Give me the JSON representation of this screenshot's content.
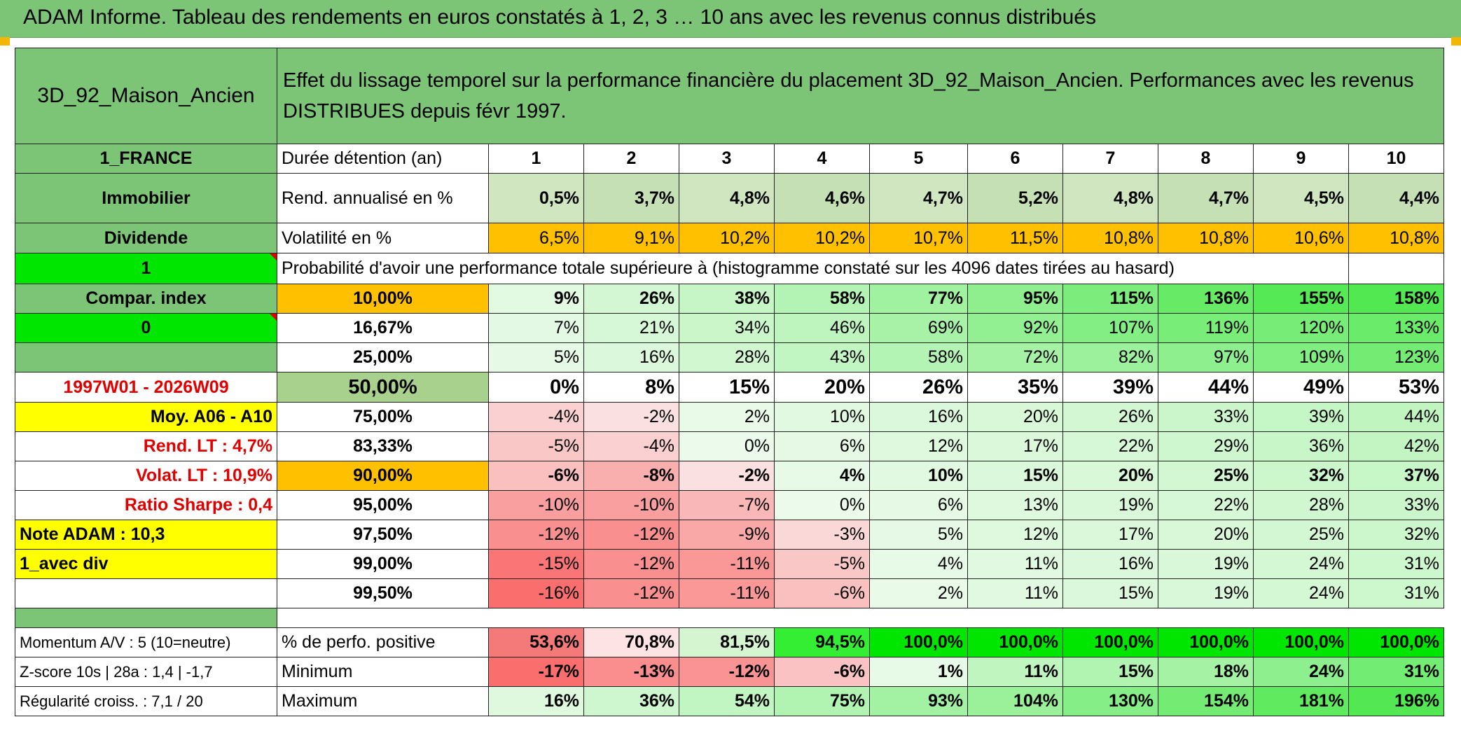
{
  "title": "ADAM Informe. Tableau des rendements en euros constatés à 1, 2, 3 … 10 ans avec les revenus connus distribués",
  "colors": {
    "green_header": "#7cc576",
    "bright_green": "#00e600",
    "orange": "#ffc000",
    "yellow": "#ffff00",
    "red_text": "#e00000"
  },
  "left": {
    "name": "3D_92_Maison_Ancien",
    "country": "1_FRANCE",
    "category": "Immobilier",
    "income_type": "Dividende",
    "flag1": "1",
    "compar": "Compar. index",
    "flag2": "0",
    "period": "1997W01 - 2026W09",
    "moy": "Moy. A06 - A10",
    "rend_lt": "Rend. LT :   4,7%",
    "volat_lt": "Volat. LT :   10,9%",
    "sharpe": "Ratio Sharpe :   0,4",
    "note": "Note ADAM : 10,3",
    "avec_div": "1_avec div",
    "momentum": "Momentum A/V : 5 (10=neutre)",
    "zscore": "Z-score 10s | 28a : 1,4 | -1,7",
    "regularite": "Régularité croiss. : 7,1 / 20"
  },
  "description": "Effet du lissage temporel sur la performance financière du placement 3D_92_Maison_Ancien. Performances avec les revenus DISTRIBUES depuis févr 1997.",
  "header": {
    "label": "Durée détention (an)",
    "years": [
      "1",
      "2",
      "3",
      "4",
      "5",
      "6",
      "7",
      "8",
      "9",
      "10"
    ]
  },
  "rend": {
    "label": "Rend. annualisé en %",
    "values": [
      "0,5%",
      "3,7%",
      "4,8%",
      "4,6%",
      "4,7%",
      "5,2%",
      "4,8%",
      "4,7%",
      "4,5%",
      "4,4%"
    ]
  },
  "vol": {
    "label": "Volatilité en %",
    "values": [
      "6,5%",
      "9,1%",
      "10,2%",
      "10,2%",
      "10,7%",
      "11,5%",
      "10,8%",
      "10,8%",
      "10,6%",
      "10,8%"
    ]
  },
  "proba_label": "Probabilité d'avoir une performance totale supérieure à (histogramme constaté sur les 4096 dates tirées au hasard)",
  "quantiles": [
    {
      "p": "10,00%",
      "values": [
        "9%",
        "26%",
        "38%",
        "58%",
        "77%",
        "95%",
        "115%",
        "136%",
        "155%",
        "158%"
      ]
    },
    {
      "p": "16,67%",
      "values": [
        "7%",
        "21%",
        "34%",
        "46%",
        "69%",
        "92%",
        "107%",
        "119%",
        "120%",
        "133%"
      ]
    },
    {
      "p": "25,00%",
      "values": [
        "5%",
        "16%",
        "28%",
        "43%",
        "58%",
        "72%",
        "82%",
        "97%",
        "109%",
        "123%"
      ]
    },
    {
      "p": "50,00%",
      "values": [
        "0%",
        "8%",
        "15%",
        "20%",
        "26%",
        "35%",
        "39%",
        "44%",
        "49%",
        "53%"
      ]
    },
    {
      "p": "75,00%",
      "values": [
        "-4%",
        "-2%",
        "2%",
        "10%",
        "16%",
        "20%",
        "26%",
        "33%",
        "39%",
        "44%"
      ]
    },
    {
      "p": "83,33%",
      "values": [
        "-5%",
        "-4%",
        "0%",
        "6%",
        "12%",
        "17%",
        "22%",
        "29%",
        "36%",
        "42%"
      ]
    },
    {
      "p": "90,00%",
      "values": [
        "-6%",
        "-8%",
        "-2%",
        "4%",
        "10%",
        "15%",
        "20%",
        "25%",
        "32%",
        "37%"
      ]
    },
    {
      "p": "95,00%",
      "values": [
        "-10%",
        "-10%",
        "-7%",
        "0%",
        "6%",
        "13%",
        "19%",
        "22%",
        "28%",
        "33%"
      ]
    },
    {
      "p": "97,50%",
      "values": [
        "-12%",
        "-12%",
        "-9%",
        "-3%",
        "5%",
        "12%",
        "17%",
        "20%",
        "25%",
        "32%"
      ]
    },
    {
      "p": "99,00%",
      "values": [
        "-15%",
        "-12%",
        "-11%",
        "-5%",
        "4%",
        "11%",
        "16%",
        "19%",
        "24%",
        "31%"
      ]
    },
    {
      "p": "99,50%",
      "values": [
        "-16%",
        "-12%",
        "-11%",
        "-6%",
        "2%",
        "11%",
        "15%",
        "19%",
        "24%",
        "31%"
      ]
    }
  ],
  "pos": {
    "label": "% de perfo. positive",
    "values": [
      "53,6%",
      "70,8%",
      "81,5%",
      "94,5%",
      "100,0%",
      "100,0%",
      "100,0%",
      "100,0%",
      "100,0%",
      "100,0%"
    ]
  },
  "min": {
    "label": "Minimum",
    "values": [
      "-17%",
      "-13%",
      "-12%",
      "-6%",
      "1%",
      "11%",
      "15%",
      "18%",
      "24%",
      "31%"
    ]
  },
  "max": {
    "label": "Maximum",
    "values": [
      "16%",
      "36%",
      "54%",
      "75%",
      "93%",
      "104%",
      "130%",
      "154%",
      "181%",
      "196%"
    ]
  }
}
